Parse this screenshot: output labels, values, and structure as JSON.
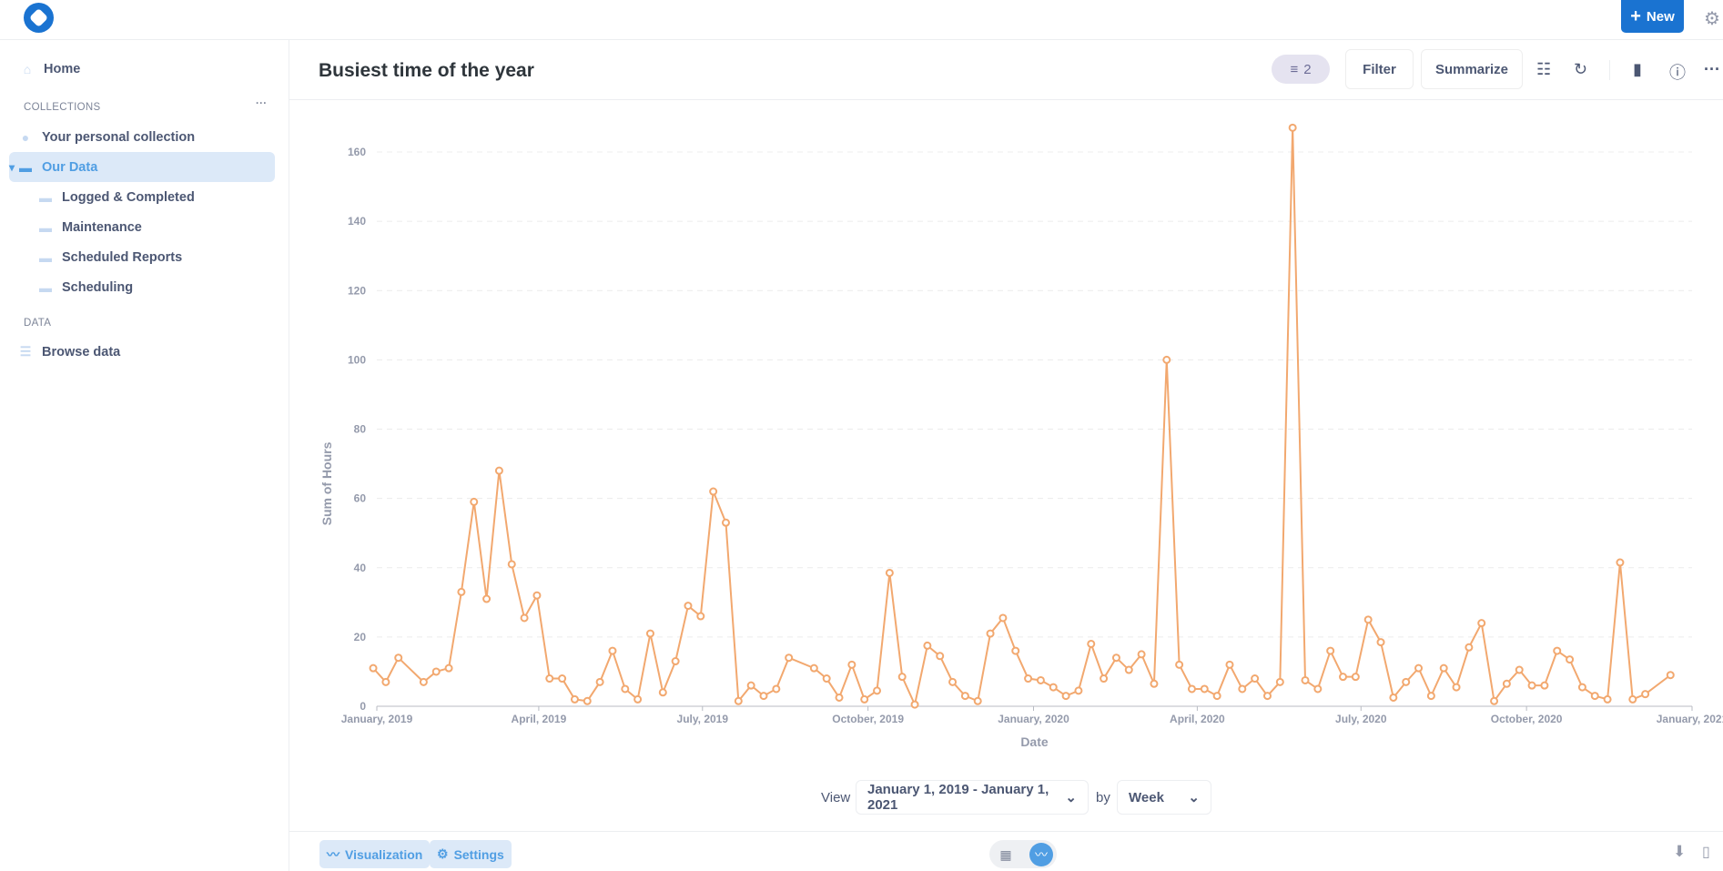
{
  "topbar": {
    "new_label": "New",
    "logo": "metabase-logo"
  },
  "sidebar": {
    "home": "Home",
    "collections_heading": "COLLECTIONS",
    "collections_more": "···",
    "personal": "Your personal collection",
    "our_data": "Our Data",
    "children": [
      "Logged & Completed",
      "Maintenance",
      "Scheduled Reports",
      "Scheduling"
    ],
    "data_heading": "DATA",
    "browse": "Browse data"
  },
  "header": {
    "title": "Busiest time of the year",
    "filter_count": "2",
    "filter_label": "Filter",
    "summarize_label": "Summarize"
  },
  "controls": {
    "view_label": "View",
    "range": "January 1, 2019 - January 1, 2021",
    "by_label": "by",
    "unit": "Week"
  },
  "footer": {
    "visualization": "Visualization",
    "settings": "Settings"
  },
  "colors": {
    "series": "#f2a86f",
    "accent": "#509ee3",
    "brand": "#1a73d1"
  },
  "chart_data": {
    "type": "line",
    "title": "Busiest time of the year",
    "xlabel": "Date",
    "ylabel": "Sum of Hours",
    "ylim": [
      0,
      170
    ],
    "yticks": [
      "0",
      "20",
      "40",
      "60",
      "80",
      "100",
      "120",
      "140",
      "160"
    ],
    "x_ticks": [
      [
        "2019-01-01",
        "January, 2019"
      ],
      [
        "2019-04-01",
        "April, 2019"
      ],
      [
        "2019-07-01",
        "July, 2019"
      ],
      [
        "2019-10-01",
        "October, 2019"
      ],
      [
        "2020-01-01",
        "January, 2020"
      ],
      [
        "2020-04-01",
        "April, 2020"
      ],
      [
        "2020-07-01",
        "July, 2020"
      ],
      [
        "2020-10-01",
        "October, 2020"
      ],
      [
        "2021-01-01",
        "January, 2021"
      ]
    ],
    "x_range": [
      "2019-01-01",
      "2021-01-01"
    ],
    "x_origin": "2018-12-30",
    "x_unit": "week",
    "series": [
      {
        "name": "Sum of Hours",
        "points": [
          [
            0,
            11
          ],
          [
            1,
            7
          ],
          [
            2,
            14
          ],
          [
            4,
            7
          ],
          [
            5,
            10
          ],
          [
            6,
            11
          ],
          [
            7,
            33
          ],
          [
            8,
            59
          ],
          [
            9,
            31
          ],
          [
            10,
            68
          ],
          [
            11,
            41
          ],
          [
            12,
            25.5
          ],
          [
            13,
            32
          ],
          [
            14,
            8
          ],
          [
            15,
            8
          ],
          [
            16,
            2
          ],
          [
            17,
            1.5
          ],
          [
            18,
            7
          ],
          [
            19,
            16
          ],
          [
            20,
            5
          ],
          [
            21,
            2
          ],
          [
            22,
            21
          ],
          [
            23,
            4
          ],
          [
            24,
            13
          ],
          [
            25,
            29
          ],
          [
            26,
            26
          ],
          [
            27,
            62
          ],
          [
            28,
            53
          ],
          [
            29,
            1.5
          ],
          [
            30,
            6
          ],
          [
            31,
            3
          ],
          [
            32,
            5
          ],
          [
            33,
            14
          ],
          [
            35,
            11
          ],
          [
            36,
            8
          ],
          [
            37,
            2.5
          ],
          [
            38,
            12
          ],
          [
            39,
            2
          ],
          [
            40,
            4.5
          ],
          [
            41,
            38.5
          ],
          [
            42,
            8.5
          ],
          [
            43,
            0.5
          ],
          [
            44,
            17.5
          ],
          [
            45,
            14.5
          ],
          [
            46,
            7
          ],
          [
            47,
            3
          ],
          [
            48,
            1.5
          ],
          [
            49,
            21
          ],
          [
            50,
            25.5
          ],
          [
            51,
            16
          ],
          [
            52,
            8
          ],
          [
            53,
            7.5
          ],
          [
            54,
            5.5
          ],
          [
            55,
            3
          ],
          [
            56,
            4.5
          ],
          [
            57,
            18
          ],
          [
            58,
            8
          ],
          [
            59,
            14
          ],
          [
            60,
            10.5
          ],
          [
            61,
            15
          ],
          [
            62,
            6.5
          ],
          [
            63,
            100
          ],
          [
            64,
            12
          ],
          [
            65,
            5
          ],
          [
            66,
            5
          ],
          [
            67,
            3
          ],
          [
            68,
            12
          ],
          [
            69,
            5
          ],
          [
            70,
            8
          ],
          [
            71,
            3
          ],
          [
            72,
            7
          ],
          [
            73,
            167
          ],
          [
            74,
            7.5
          ],
          [
            75,
            5
          ],
          [
            76,
            16
          ],
          [
            77,
            8.5
          ],
          [
            78,
            8.5
          ],
          [
            79,
            25
          ],
          [
            80,
            18.5
          ],
          [
            81,
            2.5
          ],
          [
            82,
            7
          ],
          [
            83,
            11
          ],
          [
            84,
            3
          ],
          [
            85,
            11
          ],
          [
            86,
            5.5
          ],
          [
            87,
            17
          ],
          [
            88,
            24
          ],
          [
            89,
            1.5
          ],
          [
            90,
            6.5
          ],
          [
            91,
            10.5
          ],
          [
            92,
            6
          ],
          [
            93,
            6
          ],
          [
            94,
            16
          ],
          [
            95,
            13.5
          ],
          [
            96,
            5.5
          ],
          [
            97,
            3
          ],
          [
            98,
            2
          ],
          [
            99,
            41.5
          ],
          [
            100,
            2
          ],
          [
            101,
            3.5
          ],
          [
            103,
            9
          ]
        ]
      }
    ]
  }
}
